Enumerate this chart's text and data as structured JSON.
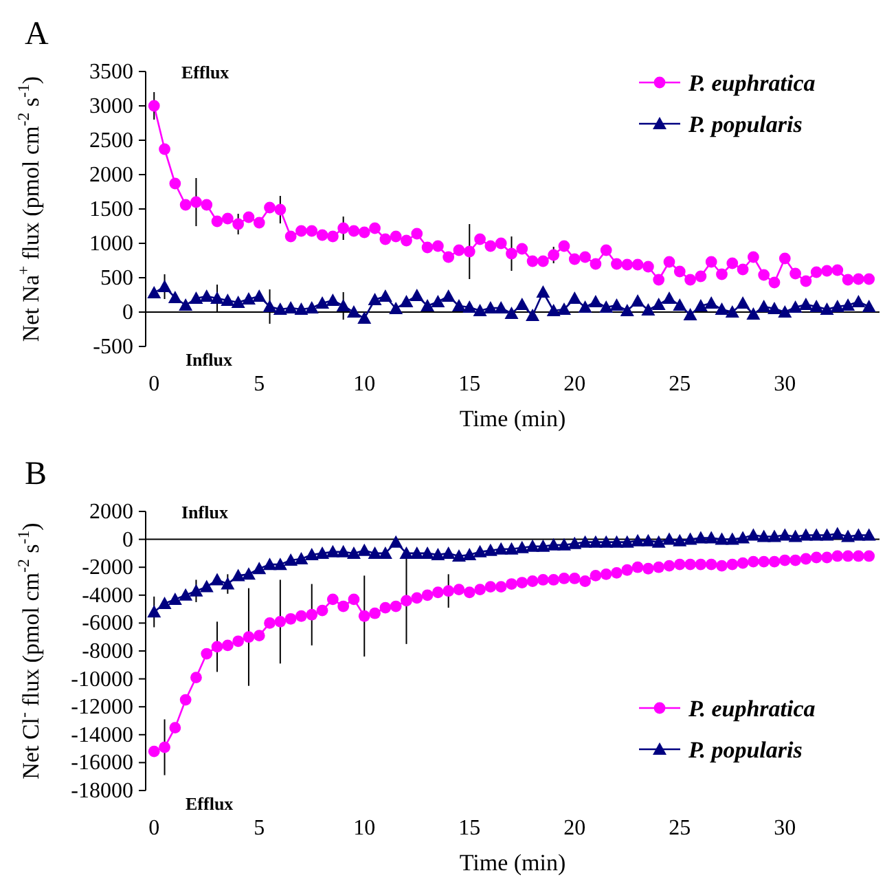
{
  "chart_data": [
    {
      "type": "line",
      "title": "A",
      "xlabel": "Time (min)",
      "ylabel": "Net Na$^{+}$ flux (pmol cm$^{-2}$ s$^{-1}$)",
      "annotations": [
        "Efflux",
        "Influx"
      ],
      "x": [
        0,
        0.5,
        1,
        1.5,
        2,
        2.5,
        3,
        3.5,
        4,
        4.5,
        5,
        5.5,
        6,
        6.5,
        7,
        7.5,
        8,
        8.5,
        9,
        9.5,
        10,
        10.5,
        11,
        11.5,
        12,
        12.5,
        13,
        13.5,
        14,
        14.5,
        15,
        15.5,
        16,
        16.5,
        17,
        17.5,
        18,
        18.5,
        19,
        19.5,
        20,
        20.5,
        21,
        21.5,
        22,
        22.5,
        23,
        23.5,
        24,
        24.5,
        25,
        25.5,
        26,
        26.5,
        27,
        27.5,
        28,
        28.5,
        29,
        29.5,
        30,
        30.5,
        31,
        31.5,
        32,
        32.5,
        33,
        33.5,
        34
      ],
      "xlim": [
        -0.4,
        34.5
      ],
      "xticks": [
        0,
        5,
        10,
        15,
        20,
        25,
        30
      ],
      "ylim": [
        -500,
        3500
      ],
      "yticks": [
        -500,
        0,
        500,
        1000,
        1500,
        2000,
        2500,
        3000,
        3500
      ],
      "legend": "top right",
      "grid": false,
      "ref_lines": [
        {
          "axis": "y",
          "value": 0
        }
      ],
      "series": [
        {
          "name": "P. euphratica",
          "color": "#ff00ff",
          "marker": "circle",
          "line_style": "solid",
          "values": [
            3000,
            2370,
            1870,
            1560,
            1600,
            1560,
            1320,
            1360,
            1280,
            1380,
            1300,
            1520,
            1490,
            1100,
            1180,
            1180,
            1120,
            1100,
            1220,
            1180,
            1160,
            1220,
            1060,
            1100,
            1040,
            1140,
            940,
            960,
            800,
            900,
            880,
            1060,
            960,
            1000,
            850,
            920,
            740,
            740,
            830,
            960,
            770,
            800,
            700,
            900,
            700,
            690,
            690,
            660,
            470,
            730,
            590,
            470,
            520,
            730,
            550,
            710,
            620,
            800,
            540,
            430,
            780,
            560,
            450,
            580,
            600,
            610,
            470,
            480,
            480
          ],
          "errors": [
            200,
            null,
            null,
            null,
            350,
            null,
            null,
            null,
            150,
            null,
            null,
            null,
            200,
            null,
            null,
            null,
            null,
            null,
            170,
            null,
            null,
            null,
            null,
            null,
            null,
            null,
            null,
            null,
            null,
            null,
            400,
            null,
            null,
            null,
            250,
            null,
            null,
            null,
            120,
            null,
            null,
            null,
            null,
            null,
            null,
            null,
            null,
            null,
            null,
            null,
            null,
            null,
            null,
            null,
            null,
            null,
            null,
            null,
            null,
            null,
            null,
            null,
            null,
            null,
            null,
            null,
            null,
            null,
            null
          ]
        },
        {
          "name": "P. popularis",
          "color": "#000080",
          "marker": "triangle",
          "line_style": "solid",
          "values": [
            280,
            370,
            210,
            100,
            200,
            230,
            200,
            170,
            140,
            190,
            230,
            80,
            40,
            60,
            40,
            60,
            130,
            170,
            90,
            0,
            -90,
            180,
            230,
            50,
            150,
            240,
            90,
            150,
            230,
            90,
            70,
            20,
            60,
            60,
            -20,
            110,
            -50,
            290,
            20,
            40,
            200,
            70,
            150,
            70,
            100,
            20,
            160,
            30,
            110,
            200,
            100,
            -40,
            90,
            130,
            40,
            0,
            130,
            -30,
            80,
            50,
            0,
            70,
            110,
            80,
            40,
            80,
            100,
            150,
            80
          ],
          "errors": [
            null,
            180,
            null,
            null,
            null,
            null,
            200,
            null,
            null,
            null,
            null,
            250,
            null,
            null,
            null,
            null,
            null,
            null,
            200,
            null,
            null,
            null,
            null,
            null,
            null,
            null,
            null,
            null,
            null,
            null,
            null,
            null,
            null,
            null,
            null,
            null,
            null,
            null,
            null,
            null,
            null,
            null,
            null,
            null,
            null,
            null,
            null,
            null,
            null,
            null,
            null,
            null,
            null,
            null,
            null,
            null,
            null,
            null,
            null,
            null,
            null,
            null,
            null,
            null,
            null,
            null,
            null,
            null,
            null
          ]
        }
      ]
    },
    {
      "type": "line",
      "title": "B",
      "xlabel": "Time (min)",
      "ylabel": "Net Cl$^{-}$ flux (pmol cm$^{-2}$ s$^{-1}$)",
      "annotations": [
        "Influx",
        "Efflux"
      ],
      "x": [
        0,
        0.5,
        1,
        1.5,
        2,
        2.5,
        3,
        3.5,
        4,
        4.5,
        5,
        5.5,
        6,
        6.5,
        7,
        7.5,
        8,
        8.5,
        9,
        9.5,
        10,
        10.5,
        11,
        11.5,
        12,
        12.5,
        13,
        13.5,
        14,
        14.5,
        15,
        15.5,
        16,
        16.5,
        17,
        17.5,
        18,
        18.5,
        19,
        19.5,
        20,
        20.5,
        21,
        21.5,
        22,
        22.5,
        23,
        23.5,
        24,
        24.5,
        25,
        25.5,
        26,
        26.5,
        27,
        27.5,
        28,
        28.5,
        29,
        29.5,
        30,
        30.5,
        31,
        31.5,
        32,
        32.5,
        33,
        33.5,
        34
      ],
      "xlim": [
        -0.4,
        34.5
      ],
      "xticks": [
        0,
        5,
        10,
        15,
        20,
        25,
        30
      ],
      "ylim": [
        -18000,
        2000
      ],
      "yticks": [
        -18000,
        -16000,
        -14000,
        -12000,
        -10000,
        -8000,
        -6000,
        -4000,
        -2000,
        0,
        2000
      ],
      "legend": "bottom right",
      "grid": false,
      "ref_lines": [
        {
          "axis": "y",
          "value": 0
        }
      ],
      "series": [
        {
          "name": "P. euphratica",
          "color": "#ff00ff",
          "marker": "circle",
          "line_style": "solid",
          "values": [
            -15200,
            -14900,
            -13500,
            -11500,
            -9900,
            -8200,
            -7700,
            -7600,
            -7300,
            -7000,
            -6900,
            -6000,
            -5900,
            -5700,
            -5500,
            -5400,
            -5100,
            -4300,
            -4800,
            -4300,
            -5500,
            -5300,
            -4900,
            -4800,
            -4400,
            -4200,
            -4000,
            -3800,
            -3700,
            -3600,
            -3800,
            -3600,
            -3400,
            -3400,
            -3200,
            -3100,
            -3000,
            -2900,
            -2900,
            -2800,
            -2800,
            -3000,
            -2600,
            -2500,
            -2400,
            -2200,
            -2000,
            -2100,
            -2000,
            -1900,
            -1800,
            -1800,
            -1800,
            -1800,
            -1900,
            -1800,
            -1700,
            -1600,
            -1600,
            -1600,
            -1500,
            -1500,
            -1400,
            -1300,
            -1300,
            -1200,
            -1200,
            -1200,
            -1200
          ],
          "errors": [
            null,
            2000,
            null,
            null,
            null,
            null,
            1800,
            null,
            null,
            3500,
            null,
            null,
            3000,
            null,
            null,
            2200,
            null,
            null,
            null,
            null,
            2900,
            null,
            null,
            null,
            3100,
            null,
            null,
            null,
            1200,
            null,
            null,
            null,
            null,
            null,
            null,
            null,
            null,
            null,
            null,
            null,
            null,
            null,
            null,
            null,
            null,
            null,
            null,
            null,
            null,
            null,
            null,
            null,
            null,
            null,
            null,
            null,
            null,
            null,
            null,
            null,
            null,
            null,
            null,
            null,
            null,
            null,
            null,
            null,
            null
          ]
        },
        {
          "name": "P. popularis",
          "color": "#000080",
          "marker": "triangle",
          "line_style": "solid",
          "values": [
            -5200,
            -4600,
            -4300,
            -4000,
            -3700,
            -3400,
            -2900,
            -3200,
            -2600,
            -2500,
            -2100,
            -1800,
            -1800,
            -1500,
            -1400,
            -1100,
            -1000,
            -900,
            -900,
            -1000,
            -800,
            -1000,
            -1000,
            -200,
            -1000,
            -1000,
            -1000,
            -1100,
            -1000,
            -1200,
            -1100,
            -900,
            -800,
            -700,
            -700,
            -600,
            -500,
            -500,
            -400,
            -400,
            -300,
            -200,
            -200,
            -200,
            -200,
            -200,
            -100,
            -100,
            -200,
            0,
            -100,
            0,
            100,
            100,
            0,
            0,
            100,
            300,
            200,
            200,
            300,
            200,
            300,
            300,
            300,
            400,
            200,
            300,
            300
          ],
          "errors": [
            1100,
            null,
            null,
            null,
            800,
            null,
            null,
            700,
            null,
            null,
            null,
            null,
            null,
            null,
            null,
            null,
            null,
            null,
            null,
            null,
            null,
            null,
            null,
            null,
            null,
            null,
            null,
            null,
            null,
            null,
            null,
            null,
            null,
            null,
            null,
            null,
            null,
            null,
            null,
            null,
            null,
            null,
            null,
            null,
            null,
            null,
            null,
            null,
            null,
            null,
            null,
            null,
            null,
            null,
            null,
            null,
            null,
            null,
            null,
            null,
            null,
            null,
            null,
            null,
            null,
            null,
            null,
            null,
            null
          ]
        }
      ]
    }
  ]
}
